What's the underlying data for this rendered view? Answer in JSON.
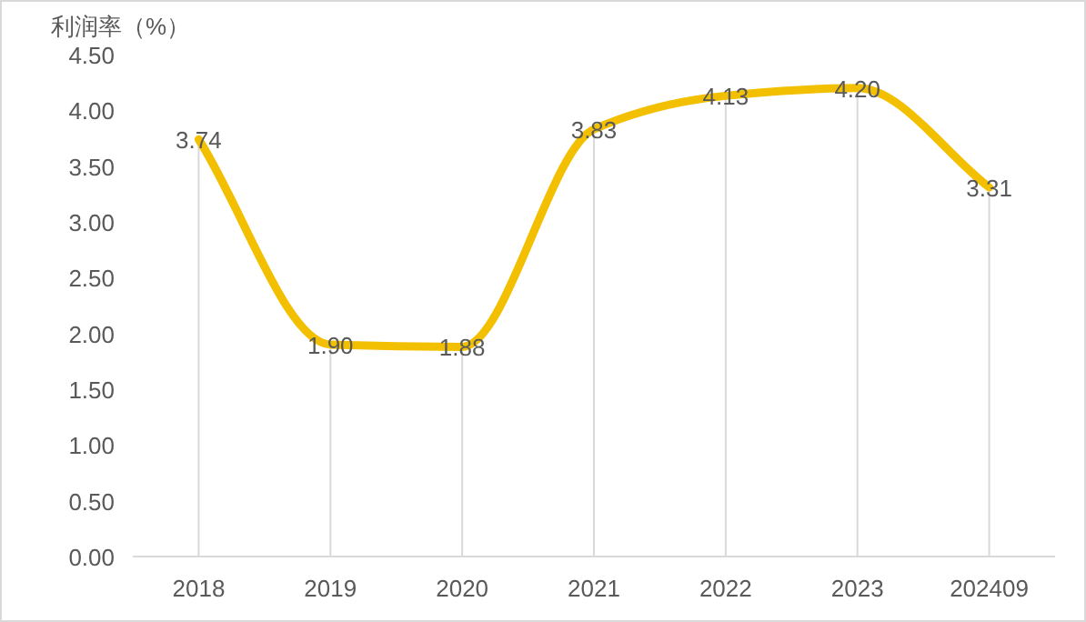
{
  "chart_data": {
    "type": "line",
    "ylabel": "利润率（%）",
    "categories": [
      "2018",
      "2019",
      "2020",
      "2021",
      "2022",
      "2023",
      "202409"
    ],
    "series": [
      {
        "color": "#f2c000",
        "values": [
          3.74,
          1.9,
          1.88,
          3.83,
          4.13,
          4.2,
          3.31
        ],
        "value_labels": [
          "3.74",
          "1.90",
          "1.88",
          "3.83",
          "4.13",
          "4.20",
          "3.31"
        ]
      }
    ],
    "ylim": [
      0,
      4.5
    ],
    "yticks": [
      {
        "value": 0,
        "label": "0.00"
      },
      {
        "value": 0.5,
        "label": "0.50"
      },
      {
        "value": 1,
        "label": "1.00"
      },
      {
        "value": 1.5,
        "label": "1.50"
      },
      {
        "value": 2,
        "label": "2.00"
      },
      {
        "value": 2.5,
        "label": "2.50"
      },
      {
        "value": 3,
        "label": "3.00"
      },
      {
        "value": 3.5,
        "label": "3.50"
      },
      {
        "value": 4,
        "label": "4.00"
      },
      {
        "value": 4.5,
        "label": "4.50"
      }
    ],
    "grid": "x",
    "marker": "none",
    "line_style": "solid"
  }
}
